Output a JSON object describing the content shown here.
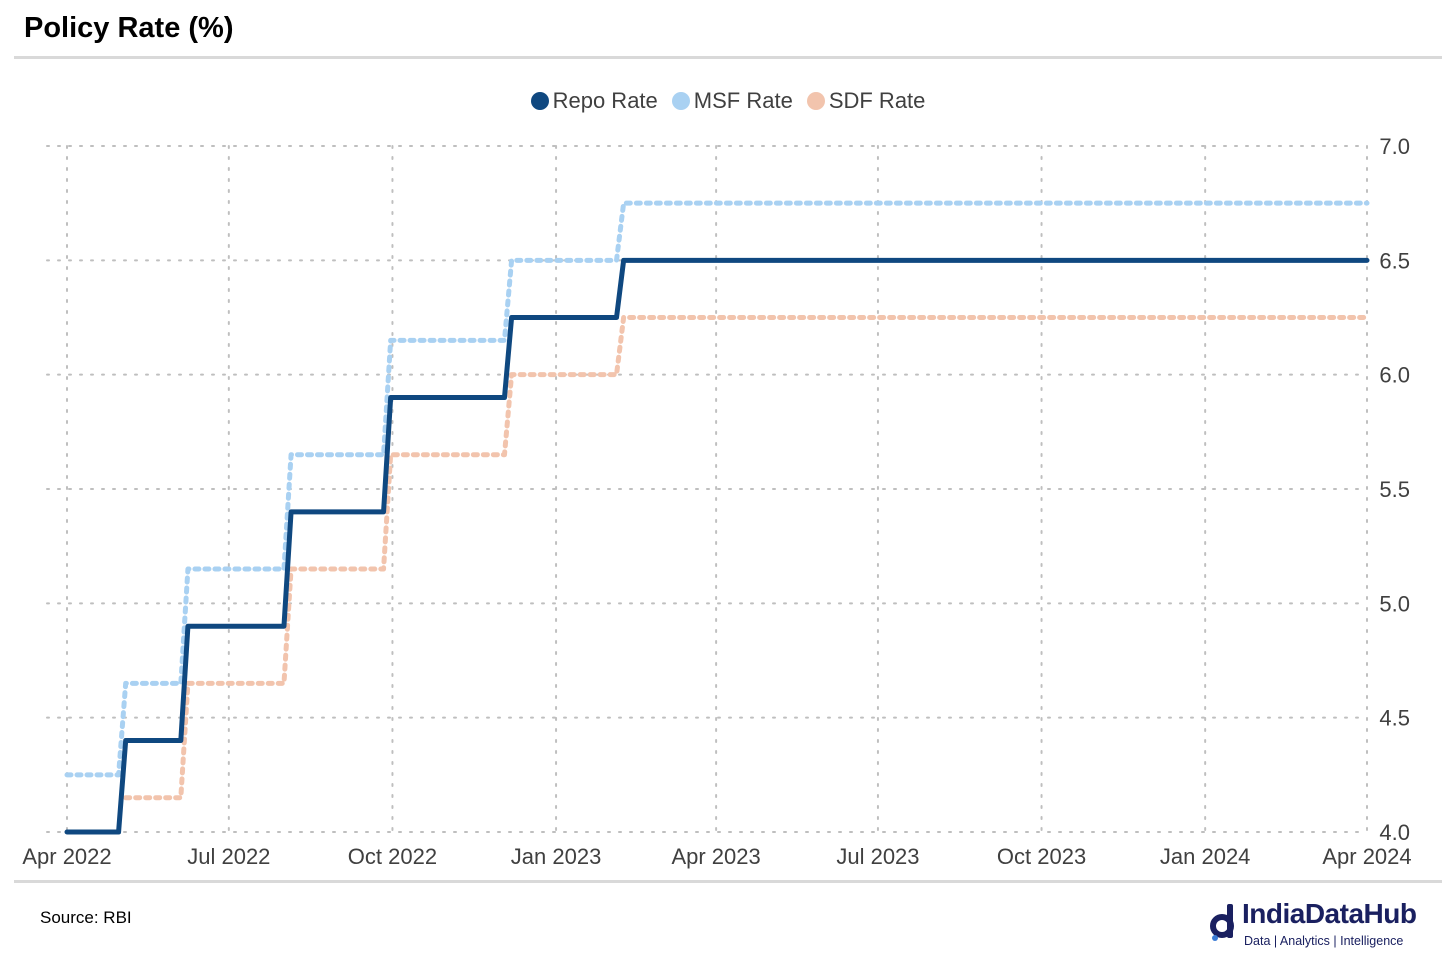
{
  "title": "Policy Rate (%)",
  "source": "Source: RBI",
  "brand": {
    "name": "IndiaDataHub",
    "tagline": "Data | Analytics | Intelligence",
    "icon": "indiadatahub-logo-icon"
  },
  "colors": {
    "repo": "#0f4880",
    "msf": "#a9d1f2",
    "sdf": "#f2c4ad",
    "grid": "#bfbfbf",
    "axis_text": "#404040"
  },
  "chart_data": {
    "type": "line",
    "title": "Policy Rate (%)",
    "xlabel": "",
    "ylabel": "",
    "x_ticks": [
      "Apr 2022",
      "Jul 2022",
      "Oct 2022",
      "Jan 2023",
      "Apr 2023",
      "Jul 2023",
      "Oct 2023",
      "Jan 2024",
      "Apr 2024"
    ],
    "x_tick_dates": [
      "2022-04-01",
      "2022-07-01",
      "2022-10-01",
      "2023-01-01",
      "2023-04-01",
      "2023-07-01",
      "2023-10-01",
      "2024-01-01",
      "2024-04-01"
    ],
    "x_range": [
      "2022-04-01",
      "2024-04-01"
    ],
    "ylim": [
      4.0,
      7.0
    ],
    "y_ticks": [
      "4.0",
      "4.5",
      "5.0",
      "5.5",
      "6.0",
      "6.5",
      "7.0"
    ],
    "y_axis_position": "right",
    "grid": true,
    "grid_style": "dotted",
    "legend_position": "top-center",
    "step": true,
    "series": [
      {
        "name": "Repo Rate",
        "style": "solid",
        "points": [
          [
            "2022-04-01",
            4.0
          ],
          [
            "2022-05-04",
            4.4
          ],
          [
            "2022-06-08",
            4.9
          ],
          [
            "2022-08-05",
            5.4
          ],
          [
            "2022-09-30",
            5.9
          ],
          [
            "2022-12-07",
            6.25
          ],
          [
            "2023-02-08",
            6.5
          ],
          [
            "2024-04-01",
            6.5
          ]
        ]
      },
      {
        "name": "MSF Rate",
        "style": "dotted",
        "points": [
          [
            "2022-04-01",
            4.25
          ],
          [
            "2022-05-04",
            4.65
          ],
          [
            "2022-06-08",
            5.15
          ],
          [
            "2022-08-05",
            5.65
          ],
          [
            "2022-09-30",
            6.15
          ],
          [
            "2022-12-07",
            6.5
          ],
          [
            "2023-02-08",
            6.75
          ],
          [
            "2024-04-01",
            6.75
          ]
        ]
      },
      {
        "name": "SDF Rate",
        "style": "dotted",
        "points": [
          [
            "2022-05-04",
            4.15
          ],
          [
            "2022-06-08",
            4.65
          ],
          [
            "2022-08-05",
            5.15
          ],
          [
            "2022-09-30",
            5.65
          ],
          [
            "2022-12-07",
            6.0
          ],
          [
            "2023-02-08",
            6.25
          ],
          [
            "2024-04-01",
            6.25
          ]
        ]
      }
    ]
  }
}
